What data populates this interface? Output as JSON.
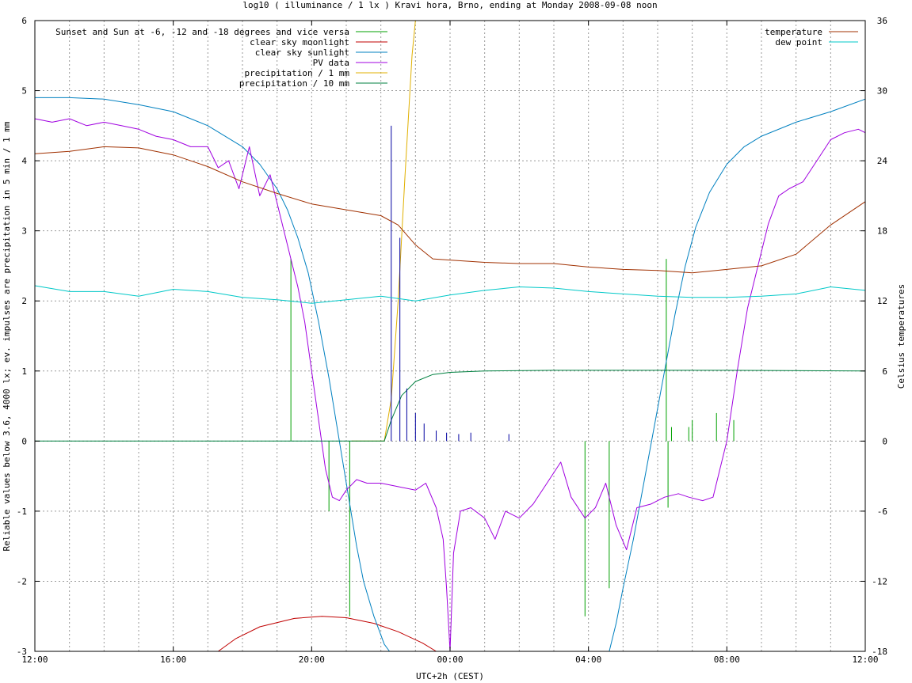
{
  "chart_data": {
    "type": "line",
    "title": "log10 ( illuminance / 1 lx ) Kravi hora, Brno, ending at Monday 2008-09-08 noon",
    "xlabel": "UTC+2h (CEST)",
    "ylabel": "Reliable values below 3.6, 4000 lx; ev. impulses are precipitation in 5 min / 1 mm",
    "y2label": "Celsius temperatures",
    "x_unit": "hours since 2008-09-07 12:00 (UTC+2h)",
    "xlim": [
      0,
      24
    ],
    "ylim": [
      -3,
      6
    ],
    "y2lim": [
      -18,
      36
    ],
    "x_ticks": [
      {
        "value": 0,
        "label": "12:00"
      },
      {
        "value": 4,
        "label": "16:00"
      },
      {
        "value": 8,
        "label": "20:00"
      },
      {
        "value": 12,
        "label": "00:00"
      },
      {
        "value": 16,
        "label": "04:00"
      },
      {
        "value": 20,
        "label": "08:00"
      },
      {
        "value": 24,
        "label": "12:00"
      }
    ],
    "y_ticks": [
      {
        "value": 6,
        "label": "6"
      },
      {
        "value": 5,
        "label": "5"
      },
      {
        "value": 4,
        "label": "4"
      },
      {
        "value": 3,
        "label": "3"
      },
      {
        "value": 2,
        "label": "2"
      },
      {
        "value": 1,
        "label": "1"
      },
      {
        "value": 0,
        "label": "0"
      },
      {
        "value": -1,
        "label": "-1"
      },
      {
        "value": -2,
        "label": "-2"
      },
      {
        "value": -3,
        "label": "-3"
      }
    ],
    "y2_ticks": [
      {
        "value": 36,
        "label": "36"
      },
      {
        "value": 30,
        "label": "30"
      },
      {
        "value": 24,
        "label": "24"
      },
      {
        "value": 18,
        "label": "18"
      },
      {
        "value": 12,
        "label": "12"
      },
      {
        "value": 6,
        "label": "6"
      },
      {
        "value": 0,
        "label": "0"
      },
      {
        "value": -6,
        "label": "-6"
      },
      {
        "value": -12,
        "label": "-12"
      },
      {
        "value": -18,
        "label": "-18"
      }
    ],
    "grid": true,
    "legend_left_placement": "top-left",
    "legend_right_placement": "top-right",
    "series": [
      {
        "name": "Sunset and Sun at -6, -12 and -18 degrees and vice versa",
        "kind": "impulses",
        "color": "#00a000",
        "axis": "y",
        "points": [
          [
            7.4,
            2.6
          ],
          [
            8.5,
            -1.0
          ],
          [
            9.1,
            -2.5
          ],
          [
            15.9,
            -2.5
          ],
          [
            16.6,
            -2.1
          ],
          [
            18.3,
            -0.95
          ],
          [
            18.9,
            0.2
          ],
          [
            19.7,
            0.4
          ],
          [
            20.2,
            0.3
          ],
          [
            19.0,
            0.3
          ],
          [
            18.4,
            0.2
          ],
          [
            18.25,
            2.6
          ]
        ]
      },
      {
        "name": "clear sky moonlight",
        "kind": "line",
        "color": "#c00000",
        "axis": "y",
        "points": [
          [
            5.3,
            -3.0
          ],
          [
            5.8,
            -2.82
          ],
          [
            6.5,
            -2.65
          ],
          [
            7.5,
            -2.53
          ],
          [
            8.3,
            -2.5
          ],
          [
            9.0,
            -2.52
          ],
          [
            9.8,
            -2.6
          ],
          [
            10.5,
            -2.72
          ],
          [
            11.2,
            -2.88
          ],
          [
            11.6,
            -3.0
          ]
        ]
      },
      {
        "name": "clear sky sunlight",
        "kind": "line",
        "color": "#0080c0",
        "axis": "y",
        "points": [
          [
            0,
            4.9
          ],
          [
            1,
            4.9
          ],
          [
            2,
            4.88
          ],
          [
            3,
            4.8
          ],
          [
            4,
            4.7
          ],
          [
            5,
            4.5
          ],
          [
            6,
            4.2
          ],
          [
            6.5,
            3.95
          ],
          [
            7,
            3.6
          ],
          [
            7.3,
            3.3
          ],
          [
            7.6,
            2.9
          ],
          [
            7.9,
            2.4
          ],
          [
            8.2,
            1.7
          ],
          [
            8.5,
            0.9
          ],
          [
            8.8,
            0.0
          ],
          [
            9.1,
            -0.9
          ],
          [
            9.3,
            -1.5
          ],
          [
            9.5,
            -2.0
          ],
          [
            9.8,
            -2.5
          ],
          [
            10.1,
            -2.9
          ],
          [
            10.25,
            -3.0
          ],
          [
            16.6,
            -3.0
          ],
          [
            16.8,
            -2.6
          ],
          [
            17.0,
            -2.1
          ],
          [
            17.3,
            -1.4
          ],
          [
            17.6,
            -0.6
          ],
          [
            17.9,
            0.2
          ],
          [
            18.2,
            1.0
          ],
          [
            18.5,
            1.8
          ],
          [
            18.8,
            2.5
          ],
          [
            19.1,
            3.05
          ],
          [
            19.5,
            3.55
          ],
          [
            20.0,
            3.95
          ],
          [
            20.5,
            4.2
          ],
          [
            21.0,
            4.35
          ],
          [
            22.0,
            4.55
          ],
          [
            23.0,
            4.7
          ],
          [
            24.0,
            4.88
          ]
        ]
      },
      {
        "name": "PV data",
        "kind": "line",
        "color": "#a000e0",
        "axis": "y",
        "points": [
          [
            0,
            4.6
          ],
          [
            0.5,
            4.55
          ],
          [
            1,
            4.6
          ],
          [
            1.5,
            4.5
          ],
          [
            2,
            4.55
          ],
          [
            2.5,
            4.5
          ],
          [
            3,
            4.45
          ],
          [
            3.5,
            4.35
          ],
          [
            4,
            4.3
          ],
          [
            4.5,
            4.2
          ],
          [
            5,
            4.2
          ],
          [
            5.3,
            3.9
          ],
          [
            5.6,
            4.0
          ],
          [
            5.9,
            3.6
          ],
          [
            6.2,
            4.2
          ],
          [
            6.5,
            3.5
          ],
          [
            6.8,
            3.8
          ],
          [
            7.1,
            3.2
          ],
          [
            7.4,
            2.6
          ],
          [
            7.6,
            2.2
          ],
          [
            7.8,
            1.7
          ],
          [
            8.0,
            1.0
          ],
          [
            8.2,
            0.3
          ],
          [
            8.4,
            -0.4
          ],
          [
            8.6,
            -0.8
          ],
          [
            8.8,
            -0.85
          ],
          [
            9.0,
            -0.7
          ],
          [
            9.3,
            -0.55
          ],
          [
            9.6,
            -0.6
          ],
          [
            10.0,
            -0.6
          ],
          [
            10.5,
            -0.65
          ],
          [
            11.0,
            -0.7
          ],
          [
            11.3,
            -0.6
          ],
          [
            11.6,
            -0.95
          ],
          [
            11.8,
            -1.4
          ],
          [
            11.9,
            -2.1
          ],
          [
            12.0,
            -3.0
          ],
          [
            12.1,
            -1.6
          ],
          [
            12.3,
            -1.0
          ],
          [
            12.6,
            -0.95
          ],
          [
            13.0,
            -1.1
          ],
          [
            13.3,
            -1.4
          ],
          [
            13.6,
            -1.0
          ],
          [
            14.0,
            -1.1
          ],
          [
            14.4,
            -0.9
          ],
          [
            14.8,
            -0.6
          ],
          [
            15.2,
            -0.3
          ],
          [
            15.5,
            -0.8
          ],
          [
            15.9,
            -1.1
          ],
          [
            16.2,
            -0.95
          ],
          [
            16.5,
            -0.6
          ],
          [
            16.8,
            -1.2
          ],
          [
            17.1,
            -1.55
          ],
          [
            17.4,
            -0.95
          ],
          [
            17.8,
            -0.9
          ],
          [
            18.2,
            -0.8
          ],
          [
            18.6,
            -0.75
          ],
          [
            18.9,
            -0.8
          ],
          [
            19.3,
            -0.85
          ],
          [
            19.6,
            -0.8
          ],
          [
            20.0,
            0.0
          ],
          [
            20.3,
            1.0
          ],
          [
            20.6,
            1.9
          ],
          [
            20.9,
            2.5
          ],
          [
            21.2,
            3.1
          ],
          [
            21.5,
            3.5
          ],
          [
            21.8,
            3.6
          ],
          [
            22.2,
            3.7
          ],
          [
            22.6,
            4.0
          ],
          [
            23.0,
            4.3
          ],
          [
            23.4,
            4.4
          ],
          [
            23.8,
            4.45
          ],
          [
            24.0,
            4.4
          ]
        ]
      },
      {
        "name": "precipitation / 1 mm",
        "kind": "line",
        "color": "#e0b000",
        "axis": "y",
        "points": [
          [
            9.15,
            0.0
          ],
          [
            10.1,
            0.0
          ],
          [
            10.3,
            0.6
          ],
          [
            10.5,
            2.0
          ],
          [
            10.7,
            3.8
          ],
          [
            10.9,
            5.5
          ],
          [
            11.0,
            6.0
          ]
        ]
      },
      {
        "name": "precipitation / 10 mm",
        "kind": "line",
        "color": "#008040",
        "axis": "y",
        "points": [
          [
            0,
            0.0
          ],
          [
            10.1,
            0.0
          ],
          [
            10.3,
            0.3
          ],
          [
            10.6,
            0.65
          ],
          [
            11.0,
            0.85
          ],
          [
            11.5,
            0.95
          ],
          [
            12.0,
            0.98
          ],
          [
            13.0,
            1.0
          ],
          [
            15.0,
            1.01
          ],
          [
            20.0,
            1.01
          ],
          [
            24.0,
            1.0
          ]
        ]
      },
      {
        "name": "precipitation impulses",
        "kind": "impulses",
        "color": "#0000a0",
        "axis": "y",
        "points": [
          [
            10.3,
            4.5
          ],
          [
            10.55,
            2.9
          ],
          [
            10.75,
            0.75
          ],
          [
            11.0,
            0.4
          ],
          [
            11.25,
            0.25
          ],
          [
            11.6,
            0.15
          ],
          [
            11.9,
            0.12
          ],
          [
            12.25,
            0.1
          ],
          [
            12.6,
            0.12
          ],
          [
            13.7,
            0.1
          ]
        ]
      },
      {
        "name": "temperature",
        "kind": "line",
        "color": "#a03000",
        "axis": "y2",
        "points": [
          [
            0,
            24.6
          ],
          [
            1,
            24.8
          ],
          [
            2,
            25.2
          ],
          [
            3,
            25.1
          ],
          [
            4,
            24.5
          ],
          [
            5,
            23.5
          ],
          [
            6,
            22.2
          ],
          [
            7,
            21.2
          ],
          [
            8,
            20.3
          ],
          [
            9,
            19.8
          ],
          [
            10,
            19.3
          ],
          [
            10.5,
            18.5
          ],
          [
            11,
            16.8
          ],
          [
            11.5,
            15.6
          ],
          [
            12,
            15.5
          ],
          [
            13,
            15.3
          ],
          [
            14,
            15.2
          ],
          [
            15,
            15.2
          ],
          [
            16,
            14.9
          ],
          [
            17,
            14.7
          ],
          [
            18,
            14.6
          ],
          [
            19,
            14.4
          ],
          [
            20,
            14.7
          ],
          [
            21,
            15.0
          ],
          [
            22,
            16.0
          ],
          [
            23,
            18.5
          ],
          [
            24,
            20.5
          ]
        ]
      },
      {
        "name": "dew point",
        "kind": "line",
        "color": "#00c8c8",
        "axis": "y2",
        "points": [
          [
            0,
            13.3
          ],
          [
            1,
            12.8
          ],
          [
            2,
            12.8
          ],
          [
            3,
            12.4
          ],
          [
            4,
            13.0
          ],
          [
            5,
            12.8
          ],
          [
            6,
            12.3
          ],
          [
            7,
            12.1
          ],
          [
            8,
            11.8
          ],
          [
            9,
            12.1
          ],
          [
            10,
            12.4
          ],
          [
            11,
            12.0
          ],
          [
            12,
            12.5
          ],
          [
            13,
            12.9
          ],
          [
            14,
            13.2
          ],
          [
            15,
            13.1
          ],
          [
            16,
            12.8
          ],
          [
            17,
            12.6
          ],
          [
            18,
            12.4
          ],
          [
            19,
            12.3
          ],
          [
            20,
            12.3
          ],
          [
            21,
            12.4
          ],
          [
            22,
            12.6
          ],
          [
            23,
            13.2
          ],
          [
            24,
            12.9
          ]
        ]
      }
    ],
    "legend_left": [
      {
        "label": "Sunset and Sun at -6, -12 and -18 degrees and vice versa",
        "color": "#00a000"
      },
      {
        "label": "clear sky moonlight",
        "color": "#c00000"
      },
      {
        "label": "clear sky sunlight",
        "color": "#0080c0"
      },
      {
        "label": "PV data",
        "color": "#a000e0"
      },
      {
        "label": "precipitation / 1 mm",
        "color": "#e0b000"
      },
      {
        "label": "precipitation / 10 mm",
        "color": "#008040"
      }
    ],
    "legend_right": [
      {
        "label": "temperature",
        "color": "#a03000"
      },
      {
        "label": "dew point",
        "color": "#00c8c8"
      }
    ]
  }
}
